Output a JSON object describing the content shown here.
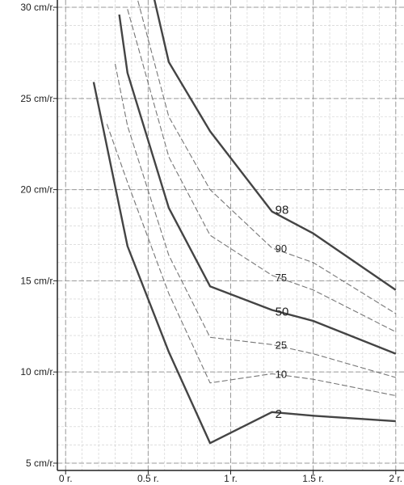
{
  "chart_data": {
    "type": "line",
    "title": "",
    "xlabel": "",
    "ylabel": "",
    "xlim": [
      -0.05,
      2.05
    ],
    "ylim": [
      4.6,
      30.4
    ],
    "grid": true,
    "legend": "none",
    "x_ticks": [
      {
        "value": 0,
        "label": "0 r."
      },
      {
        "value": 0.5,
        "label": "0.5 r."
      },
      {
        "value": 1,
        "label": "1 r."
      },
      {
        "value": 1.5,
        "label": "1.5 r."
      },
      {
        "value": 2,
        "label": "2 r."
      }
    ],
    "y_ticks": [
      {
        "value": 5,
        "label": "5 cm/r."
      },
      {
        "value": 10,
        "label": "10 cm/r."
      },
      {
        "value": 15,
        "label": "15 cm/r."
      },
      {
        "value": 20,
        "label": "20 cm/r."
      },
      {
        "value": 25,
        "label": "25 cm/r."
      },
      {
        "value": 30,
        "label": "30 cm/r."
      }
    ],
    "series": [
      {
        "name": "2",
        "label_at": [
          1.27,
          7.7
        ],
        "emphasis": "major",
        "points": [
          [
            0.17,
            25.9
          ],
          [
            0.375,
            16.9
          ],
          [
            0.625,
            11.1
          ],
          [
            0.875,
            6.1
          ],
          [
            1.25,
            7.8
          ],
          [
            1.5,
            7.6
          ],
          [
            2.0,
            7.3
          ]
        ]
      },
      {
        "name": "10",
        "label_at": [
          1.27,
          9.9
        ],
        "emphasis": "minor",
        "points": [
          [
            0.25,
            23.6
          ],
          [
            0.375,
            20.4
          ],
          [
            0.625,
            14.3
          ],
          [
            0.875,
            9.4
          ],
          [
            1.25,
            9.9
          ],
          [
            1.5,
            9.6
          ],
          [
            2.0,
            8.7
          ]
        ]
      },
      {
        "name": "25",
        "label_at": [
          1.27,
          11.5
        ],
        "emphasis": "minor",
        "points": [
          [
            0.3,
            26.9
          ],
          [
            0.375,
            23.5
          ],
          [
            0.625,
            16.4
          ],
          [
            0.875,
            11.9
          ],
          [
            1.25,
            11.5
          ],
          [
            1.5,
            11.0
          ],
          [
            2.0,
            9.7
          ]
        ]
      },
      {
        "name": "50",
        "label_at": [
          1.27,
          13.3
        ],
        "emphasis": "major",
        "points": [
          [
            0.325,
            29.6
          ],
          [
            0.375,
            26.4
          ],
          [
            0.625,
            19.0
          ],
          [
            0.875,
            14.7
          ],
          [
            1.25,
            13.4
          ],
          [
            1.5,
            12.8
          ],
          [
            2.0,
            11.0
          ]
        ]
      },
      {
        "name": "75",
        "label_at": [
          1.27,
          15.2
        ],
        "emphasis": "minor",
        "points": [
          [
            0.375,
            29.9
          ],
          [
            0.625,
            21.8
          ],
          [
            0.875,
            17.5
          ],
          [
            1.25,
            15.3
          ],
          [
            1.5,
            14.5
          ],
          [
            2.0,
            12.2
          ]
        ]
      },
      {
        "name": "90",
        "label_at": [
          1.27,
          16.8
        ],
        "emphasis": "minor",
        "points": [
          [
            0.375,
            32.5
          ],
          [
            0.625,
            24.0
          ],
          [
            0.875,
            20.0
          ],
          [
            1.25,
            16.8
          ],
          [
            1.5,
            16.0
          ],
          [
            2.0,
            13.2
          ]
        ]
      },
      {
        "name": "98",
        "label_at": [
          1.27,
          18.9
        ],
        "emphasis": "major",
        "points": [
          [
            0.5,
            31.9
          ],
          [
            0.625,
            27.0
          ],
          [
            0.875,
            23.2
          ],
          [
            1.25,
            18.8
          ],
          [
            1.5,
            17.6
          ],
          [
            2.0,
            14.5
          ]
        ]
      }
    ],
    "colors": {
      "background": "#ffffff",
      "grid_major": "#999999",
      "grid_minor": "#cccccc",
      "axis": "#222222",
      "major_line": "#444444",
      "minor_line": "#777777",
      "text": "#222222"
    }
  }
}
